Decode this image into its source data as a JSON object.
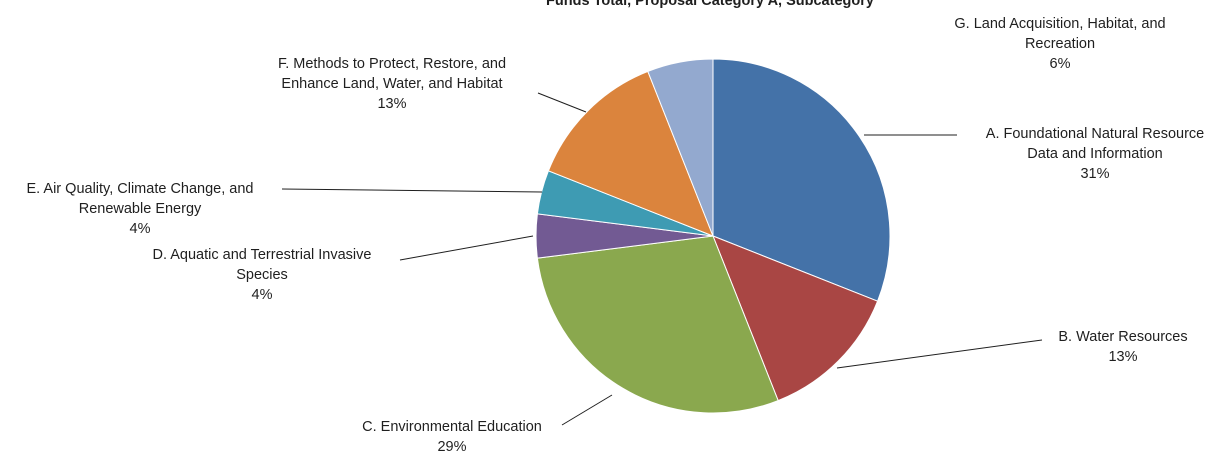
{
  "chart_data": {
    "type": "pie",
    "title": "Funds Total, Proposal Category A, Subcategory",
    "slices": [
      {
        "id": "A",
        "label_lines": [
          "A. Foundational Natural Resource",
          "Data and Information"
        ],
        "pct_label": "31%",
        "value": 31,
        "color": "#4472a8"
      },
      {
        "id": "B",
        "label_lines": [
          "B. Water Resources"
        ],
        "pct_label": "13%",
        "value": 13,
        "color": "#a94644"
      },
      {
        "id": "C",
        "label_lines": [
          "C. Environmental Education"
        ],
        "pct_label": "29%",
        "value": 29,
        "color": "#8aa84e"
      },
      {
        "id": "D",
        "label_lines": [
          "D. Aquatic and Terrestrial Invasive",
          "Species"
        ],
        "pct_label": "4%",
        "value": 4,
        "color": "#725a93"
      },
      {
        "id": "E",
        "label_lines": [
          "E. Air Quality, Climate Change, and",
          "Renewable Energy"
        ],
        "pct_label": "4%",
        "value": 4,
        "color": "#3e9bb3"
      },
      {
        "id": "F",
        "label_lines": [
          "F. Methods to Protect, Restore, and",
          "Enhance Land, Water, and Habitat"
        ],
        "pct_label": "13%",
        "value": 13,
        "color": "#db843d"
      },
      {
        "id": "G",
        "label_lines": [
          "G. Land Acquisition, Habitat, and",
          "Recreation"
        ],
        "pct_label": "6%",
        "value": 6,
        "color": "#93a9cf"
      }
    ],
    "legend": "none"
  }
}
